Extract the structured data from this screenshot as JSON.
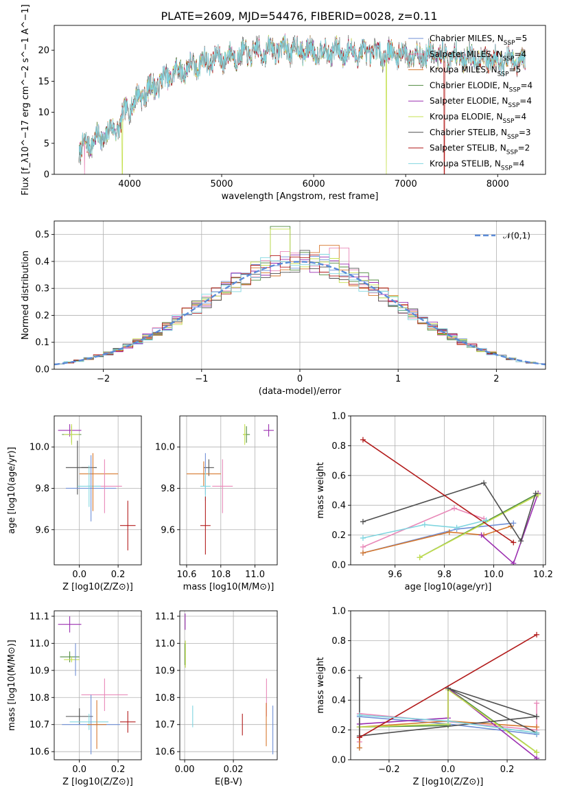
{
  "figure": {
    "title": "PLATE=2609, MJD=54476, FIBERID=0028, z=0.11"
  },
  "series_colors": {
    "Chabrier MILES": "#6f8fd6",
    "Salpeter MILES": "#e888b8",
    "Kroupa MILES": "#d6772d",
    "Chabrier ELODIE": "#4f8a3f",
    "Salpeter ELODIE": "#9b2fb0",
    "Kroupa ELODIE": "#c5e04f",
    "Chabrier STELIB": "#4f4f4f",
    "Salpeter STELIB": "#b21b1b",
    "Kroupa STELIB": "#7fd5df"
  },
  "chart_data": [
    {
      "id": "spectrum",
      "type": "line",
      "xlabel": "wavelength [Angstrom, rest frame]",
      "ylabel": "Flux [f_λ10^−17 erg cm^−2 s^−1 A^−1]",
      "xlim": [
        3180,
        8520
      ],
      "ylim": [
        0,
        24
      ],
      "xticks": [
        4000,
        5000,
        6000,
        7000,
        8000
      ],
      "yticks": [
        0,
        5,
        10,
        15,
        20
      ],
      "grid": false,
      "legend": "upper right",
      "continuum": {
        "x": [
          3450,
          3500,
          3600,
          3700,
          3800,
          3900,
          3950,
          4000,
          4100,
          4200,
          4300,
          4400,
          4500,
          4700,
          4900,
          5100,
          5300,
          5500,
          5700,
          5900,
          6100,
          6300,
          6500,
          6700,
          6900,
          7100,
          7300,
          7500,
          7700,
          7900,
          8100,
          8300
        ],
        "y": [
          3.5,
          4.5,
          5.5,
          6.0,
          7.0,
          8.0,
          10.0,
          11.0,
          12.5,
          13.5,
          14.5,
          15.5,
          16.5,
          17.5,
          18.5,
          19.0,
          19.5,
          20.0,
          20.3,
          20.0,
          19.8,
          19.7,
          19.6,
          19.5,
          19.4,
          19.3,
          19.2,
          19.0,
          18.8,
          18.6,
          18.3,
          18.0
        ]
      },
      "series": [
        {
          "name": "Chabrier MILES",
          "n_ssp": "5"
        },
        {
          "name": "Salpeter MILES",
          "n_ssp": "4"
        },
        {
          "name": "Kroupa MILES",
          "n_ssp": "5"
        },
        {
          "name": "Chabrier ELODIE",
          "n_ssp": "4"
        },
        {
          "name": "Salpeter ELODIE",
          "n_ssp": "4"
        },
        {
          "name": "Kroupa ELODIE",
          "n_ssp": "4"
        },
        {
          "name": "Chabrier STELIB",
          "n_ssp": "3"
        },
        {
          "name": "Salpeter STELIB",
          "n_ssp": "2"
        },
        {
          "name": "Kroupa STELIB",
          "n_ssp": "4"
        }
      ],
      "dropouts": [
        {
          "series": "Salpeter MILES",
          "x": 3510
        },
        {
          "series": "Kroupa ELODIE",
          "x": 3920
        },
        {
          "series": "Kroupa ELODIE",
          "x": 6790
        },
        {
          "series": "Salpeter STELIB",
          "x": 7420
        }
      ]
    },
    {
      "id": "residuals",
      "type": "histogram",
      "xlabel": "(data-model)/error",
      "ylabel": "Normed distribution",
      "xlim": [
        -2.5,
        2.5
      ],
      "ylim": [
        0,
        0.55
      ],
      "xticks": [
        -2,
        -1,
        0,
        1,
        2
      ],
      "yticks": [
        0.0,
        0.1,
        0.2,
        0.3,
        0.4,
        0.5
      ],
      "grid": true,
      "legend": "upper right",
      "gaussian": {
        "label": "𝒩(0,1)",
        "color": "#5b8bd8",
        "mean": 0,
        "sigma": 1
      },
      "bin_width": 0.1,
      "bin_start": -2.5,
      "peak_bins": [
        {
          "series": "Chabrier ELODIE",
          "x": -0.2,
          "value": 0.53
        },
        {
          "series": "Kroupa ELODIE",
          "x": -0.2,
          "value": 0.52
        },
        {
          "series": "Kroupa MILES",
          "x": 0.3,
          "value": 0.46
        },
        {
          "series": "Salpeter MILES",
          "x": 0.4,
          "value": 0.45
        }
      ]
    },
    {
      "id": "age_vs_Z",
      "type": "scatter",
      "xlabel": "Z [log10(Z/Z⊙)]",
      "ylabel": "age  [log10(age/yr)]",
      "xlim": [
        -0.13,
        0.32
      ],
      "ylim": [
        9.43,
        10.15
      ],
      "xticks": [
        0.0,
        0.2
      ],
      "yticks": [
        9.6,
        9.8,
        10.0
      ],
      "grid": true,
      "points": [
        {
          "series": "Salpeter ELODIE",
          "x": -0.05,
          "y": 10.08,
          "xerr": 0.06,
          "yerr": 0.03
        },
        {
          "series": "Chabrier ELODIE",
          "x": -0.04,
          "y": 10.06,
          "xerr": 0.05,
          "yerr": 0.04
        },
        {
          "series": "Kroupa ELODIE",
          "x": -0.04,
          "y": 10.06,
          "xerr": 0.04,
          "yerr": 0.05
        },
        {
          "series": "Chabrier STELIB",
          "x": -0.01,
          "y": 9.9,
          "xerr": 0.06,
          "yerr": 0.13
        },
        {
          "series": "Chabrier STELIB",
          "x": 0.05,
          "y": 9.9,
          "xerr": 0.04,
          "yerr": 0.0
        },
        {
          "series": "Kroupa MILES",
          "x": 0.1,
          "y": 9.87,
          "xerr": 0.1,
          "yerr": 0.0
        },
        {
          "series": "Chabrier MILES",
          "x": 0.06,
          "y": 9.8,
          "xerr": 0.13,
          "yerr": 0.16
        },
        {
          "series": "Salpeter MILES",
          "x": 0.13,
          "y": 9.81,
          "xerr": 0.09,
          "yerr": 0.13
        },
        {
          "series": "Kroupa STELIB",
          "x": 0.05,
          "y": 9.81,
          "xerr": 0.06,
          "yerr": 0.1
        },
        {
          "series": "Kroupa MILES",
          "x": 0.07,
          "y": 9.83,
          "xerr": 0.0,
          "yerr": 0.14
        },
        {
          "series": "Salpeter STELIB",
          "x": 0.25,
          "y": 9.62,
          "xerr": 0.04,
          "yerr": 0.12
        }
      ]
    },
    {
      "id": "age_vs_mass",
      "type": "scatter",
      "xlabel": "mass [log10(M/M⊙)]",
      "ylabel": "",
      "xlim": [
        10.56,
        11.13
      ],
      "ylim": [
        9.43,
        10.15
      ],
      "xticks": [
        10.6,
        10.8,
        11.0
      ],
      "yticks": [
        9.6,
        9.8,
        10.0
      ],
      "grid": true,
      "points": [
        {
          "series": "Salpeter ELODIE",
          "x": 11.08,
          "y": 10.08,
          "xerr": 0.03,
          "yerr": 0.03
        },
        {
          "series": "Chabrier ELODIE",
          "x": 10.95,
          "y": 10.06,
          "xerr": 0.02,
          "yerr": 0.04
        },
        {
          "series": "Kroupa ELODIE",
          "x": 10.94,
          "y": 10.06,
          "xerr": 0.01,
          "yerr": 0.05
        },
        {
          "series": "Chabrier STELIB",
          "x": 10.73,
          "y": 9.9,
          "xerr": 0.03,
          "yerr": 0.04
        },
        {
          "series": "Kroupa MILES",
          "x": 10.7,
          "y": 9.87,
          "xerr": 0.1,
          "yerr": 0.06
        },
        {
          "series": "Chabrier MILES",
          "x": 10.71,
          "y": 9.87,
          "xerr": 0.0,
          "yerr": 0.1
        },
        {
          "series": "Kroupa STELIB",
          "x": 10.71,
          "y": 9.81,
          "xerr": 0.03,
          "yerr": 0.07
        },
        {
          "series": "Salpeter MILES",
          "x": 10.81,
          "y": 9.81,
          "xerr": 0.06,
          "yerr": 0.13
        },
        {
          "series": "Salpeter STELIB",
          "x": 10.71,
          "y": 9.62,
          "xerr": 0.03,
          "yerr": 0.14
        }
      ]
    },
    {
      "id": "weight_vs_age",
      "type": "line",
      "xlabel": "age  [log10(age/yr)]",
      "ylabel": "mass weight",
      "xlim": [
        9.42,
        10.21
      ],
      "ylim": [
        0,
        1
      ],
      "xticks": [
        9.6,
        9.8,
        10.0,
        10.2
      ],
      "yticks": [
        0.0,
        0.2,
        0.4,
        0.6,
        0.8,
        1.0
      ],
      "grid": true,
      "series": [
        {
          "name": "Chabrier MILES",
          "x": [
            9.47,
            9.85,
            10.08
          ],
          "y": [
            0.08,
            0.24,
            0.28
          ]
        },
        {
          "name": "Salpeter MILES",
          "x": [
            9.47,
            9.84,
            9.96
          ],
          "y": [
            0.12,
            0.38,
            0.31
          ]
        },
        {
          "name": "Kroupa MILES",
          "x": [
            9.47,
            9.82,
            9.96,
            10.07
          ],
          "y": [
            0.08,
            0.22,
            0.2,
            0.26
          ]
        },
        {
          "name": "Chabrier ELODIE",
          "x": [
            9.7,
            10.18
          ],
          "y": [
            0.05,
            0.48
          ]
        },
        {
          "name": "Salpeter ELODIE",
          "x": [
            9.95,
            10.08,
            10.18
          ],
          "y": [
            0.2,
            0.01,
            0.48
          ]
        },
        {
          "name": "Kroupa ELODIE",
          "x": [
            9.7,
            10.18
          ],
          "y": [
            0.05,
            0.47
          ]
        },
        {
          "name": "Chabrier STELIB",
          "x": [
            9.47,
            9.96,
            10.11,
            10.17
          ],
          "y": [
            0.29,
            0.55,
            0.16,
            0.48
          ]
        },
        {
          "name": "Salpeter STELIB",
          "x": [
            9.47,
            10.08
          ],
          "y": [
            0.84,
            0.15
          ]
        },
        {
          "name": "Kroupa STELIB",
          "x": [
            9.47,
            9.72,
            9.85,
            9.97
          ],
          "y": [
            0.18,
            0.27,
            0.25,
            0.3
          ]
        }
      ]
    },
    {
      "id": "mass_vs_Z",
      "type": "scatter",
      "xlabel": "Z [log10(Z/Z⊙)]",
      "ylabel": "mass [log10(M/M⊙)]",
      "xlim": [
        -0.13,
        0.32
      ],
      "ylim": [
        10.57,
        11.12
      ],
      "xticks": [
        0.0,
        0.2
      ],
      "yticks": [
        10.6,
        10.7,
        10.8,
        10.9,
        11.0,
        11.1
      ],
      "grid": true,
      "points": [
        {
          "series": "Salpeter ELODIE",
          "x": -0.05,
          "y": 11.07,
          "xerr": 0.06,
          "yerr": 0.03
        },
        {
          "series": "Chabrier ELODIE",
          "x": -0.05,
          "y": 10.95,
          "xerr": 0.05,
          "yerr": 0.02
        },
        {
          "series": "Kroupa ELODIE",
          "x": -0.04,
          "y": 10.94,
          "xerr": 0.04,
          "yerr": 0.01
        },
        {
          "series": "Chabrier MILES",
          "x": -0.02,
          "y": 10.94,
          "xerr": 0.0,
          "yerr": 0.06
        },
        {
          "series": "Salpeter MILES",
          "x": 0.13,
          "y": 10.81,
          "xerr": 0.12,
          "yerr": 0.06
        },
        {
          "series": "Chabrier STELIB",
          "x": 0.0,
          "y": 10.73,
          "xerr": 0.07,
          "yerr": 0.03
        },
        {
          "series": "Kroupa STELIB",
          "x": 0.05,
          "y": 10.71,
          "xerr": 0.1,
          "yerr": 0.03
        },
        {
          "series": "Chabrier MILES",
          "x": 0.06,
          "y": 10.7,
          "xerr": 0.15,
          "yerr": 0.11
        },
        {
          "series": "Kroupa MILES",
          "x": 0.09,
          "y": 10.7,
          "xerr": 0.05,
          "yerr": 0.09
        },
        {
          "series": "Salpeter STELIB",
          "x": 0.25,
          "y": 10.71,
          "xerr": 0.04,
          "yerr": 0.04
        }
      ]
    },
    {
      "id": "mass_vs_ebv",
      "type": "scatter",
      "xlabel": "E(B-V)",
      "ylabel": "",
      "xlim": [
        -0.002,
        0.038
      ],
      "ylim": [
        10.57,
        11.12
      ],
      "xticks": [
        0.0,
        0.02
      ],
      "yticks": [
        10.6,
        10.7,
        10.8,
        10.9,
        11.0,
        11.1
      ],
      "grid": true,
      "points": [
        {
          "series": "Salpeter ELODIE",
          "x": 0.0002,
          "y": 11.08,
          "xerr": 0,
          "yerr": 0.03
        },
        {
          "series": "Chabrier ELODIE",
          "x": 0.0001,
          "y": 10.96,
          "xerr": 0,
          "yerr": 0.04
        },
        {
          "series": "Kroupa ELODIE",
          "x": 0.0003,
          "y": 10.96,
          "xerr": 0,
          "yerr": 0.05
        },
        {
          "series": "Kroupa STELIB",
          "x": 0.0033,
          "y": 10.73,
          "xerr": 0,
          "yerr": 0.04
        },
        {
          "series": "Salpeter STELIB",
          "x": 0.0237,
          "y": 10.7,
          "xerr": 0,
          "yerr": 0.04
        },
        {
          "series": "Salpeter MILES",
          "x": 0.0336,
          "y": 10.8,
          "xerr": 0,
          "yerr": 0.07
        },
        {
          "series": "Kroupa MILES",
          "x": 0.0335,
          "y": 10.7,
          "xerr": 0,
          "yerr": 0.08
        },
        {
          "series": "Chabrier MILES",
          "x": 0.0362,
          "y": 10.68,
          "xerr": 0,
          "yerr": 0.09
        }
      ]
    },
    {
      "id": "weight_vs_Z",
      "type": "line",
      "xlabel": "Z [log10(Z/Z⊙)]",
      "ylabel": "mass weight",
      "xlim": [
        -0.33,
        0.33
      ],
      "ylim": [
        0,
        1
      ],
      "xticks": [
        -0.2,
        0.0,
        0.2
      ],
      "yticks": [
        0.0,
        0.2,
        0.4,
        0.6,
        0.8,
        1.0
      ],
      "grid": true,
      "series": [
        {
          "name": "Chabrier MILES",
          "x": [
            -0.3,
            -0.3,
            0.0,
            0.3
          ],
          "y": [
            0.08,
            0.29,
            0.24,
            0.17
          ]
        },
        {
          "name": "Salpeter MILES",
          "x": [
            -0.3,
            -0.3,
            0.3,
            0.3
          ],
          "y": [
            0.12,
            0.31,
            0.2,
            0.38
          ]
        },
        {
          "name": "Kroupa MILES",
          "x": [
            -0.3,
            -0.3,
            0.0,
            0.3
          ],
          "y": [
            0.08,
            0.22,
            0.26,
            0.22
          ]
        },
        {
          "name": "Chabrier ELODIE",
          "x": [
            -0.3,
            0.0,
            0.0,
            0.3
          ],
          "y": [
            0.22,
            0.23,
            0.48,
            0.05
          ]
        },
        {
          "name": "Salpeter ELODIE",
          "x": [
            -0.3,
            0.0,
            0.0,
            0.3
          ],
          "y": [
            0.24,
            0.28,
            0.48,
            0.01
          ]
        },
        {
          "name": "Kroupa ELODIE",
          "x": [
            -0.3,
            0.0,
            0.0,
            0.3
          ],
          "y": [
            0.22,
            0.24,
            0.47,
            0.05
          ]
        },
        {
          "name": "Chabrier STELIB",
          "x": [
            -0.3,
            -0.3,
            0.3,
            0.0,
            0.3
          ],
          "y": [
            0.55,
            0.16,
            0.29,
            0.48,
            0.18
          ]
        },
        {
          "name": "Salpeter STELIB",
          "x": [
            -0.3,
            0.3
          ],
          "y": [
            0.15,
            0.84
          ]
        },
        {
          "name": "Kroupa STELIB",
          "x": [
            -0.3,
            0.0,
            0.3
          ],
          "y": [
            0.3,
            0.26,
            0.18
          ]
        }
      ]
    }
  ]
}
